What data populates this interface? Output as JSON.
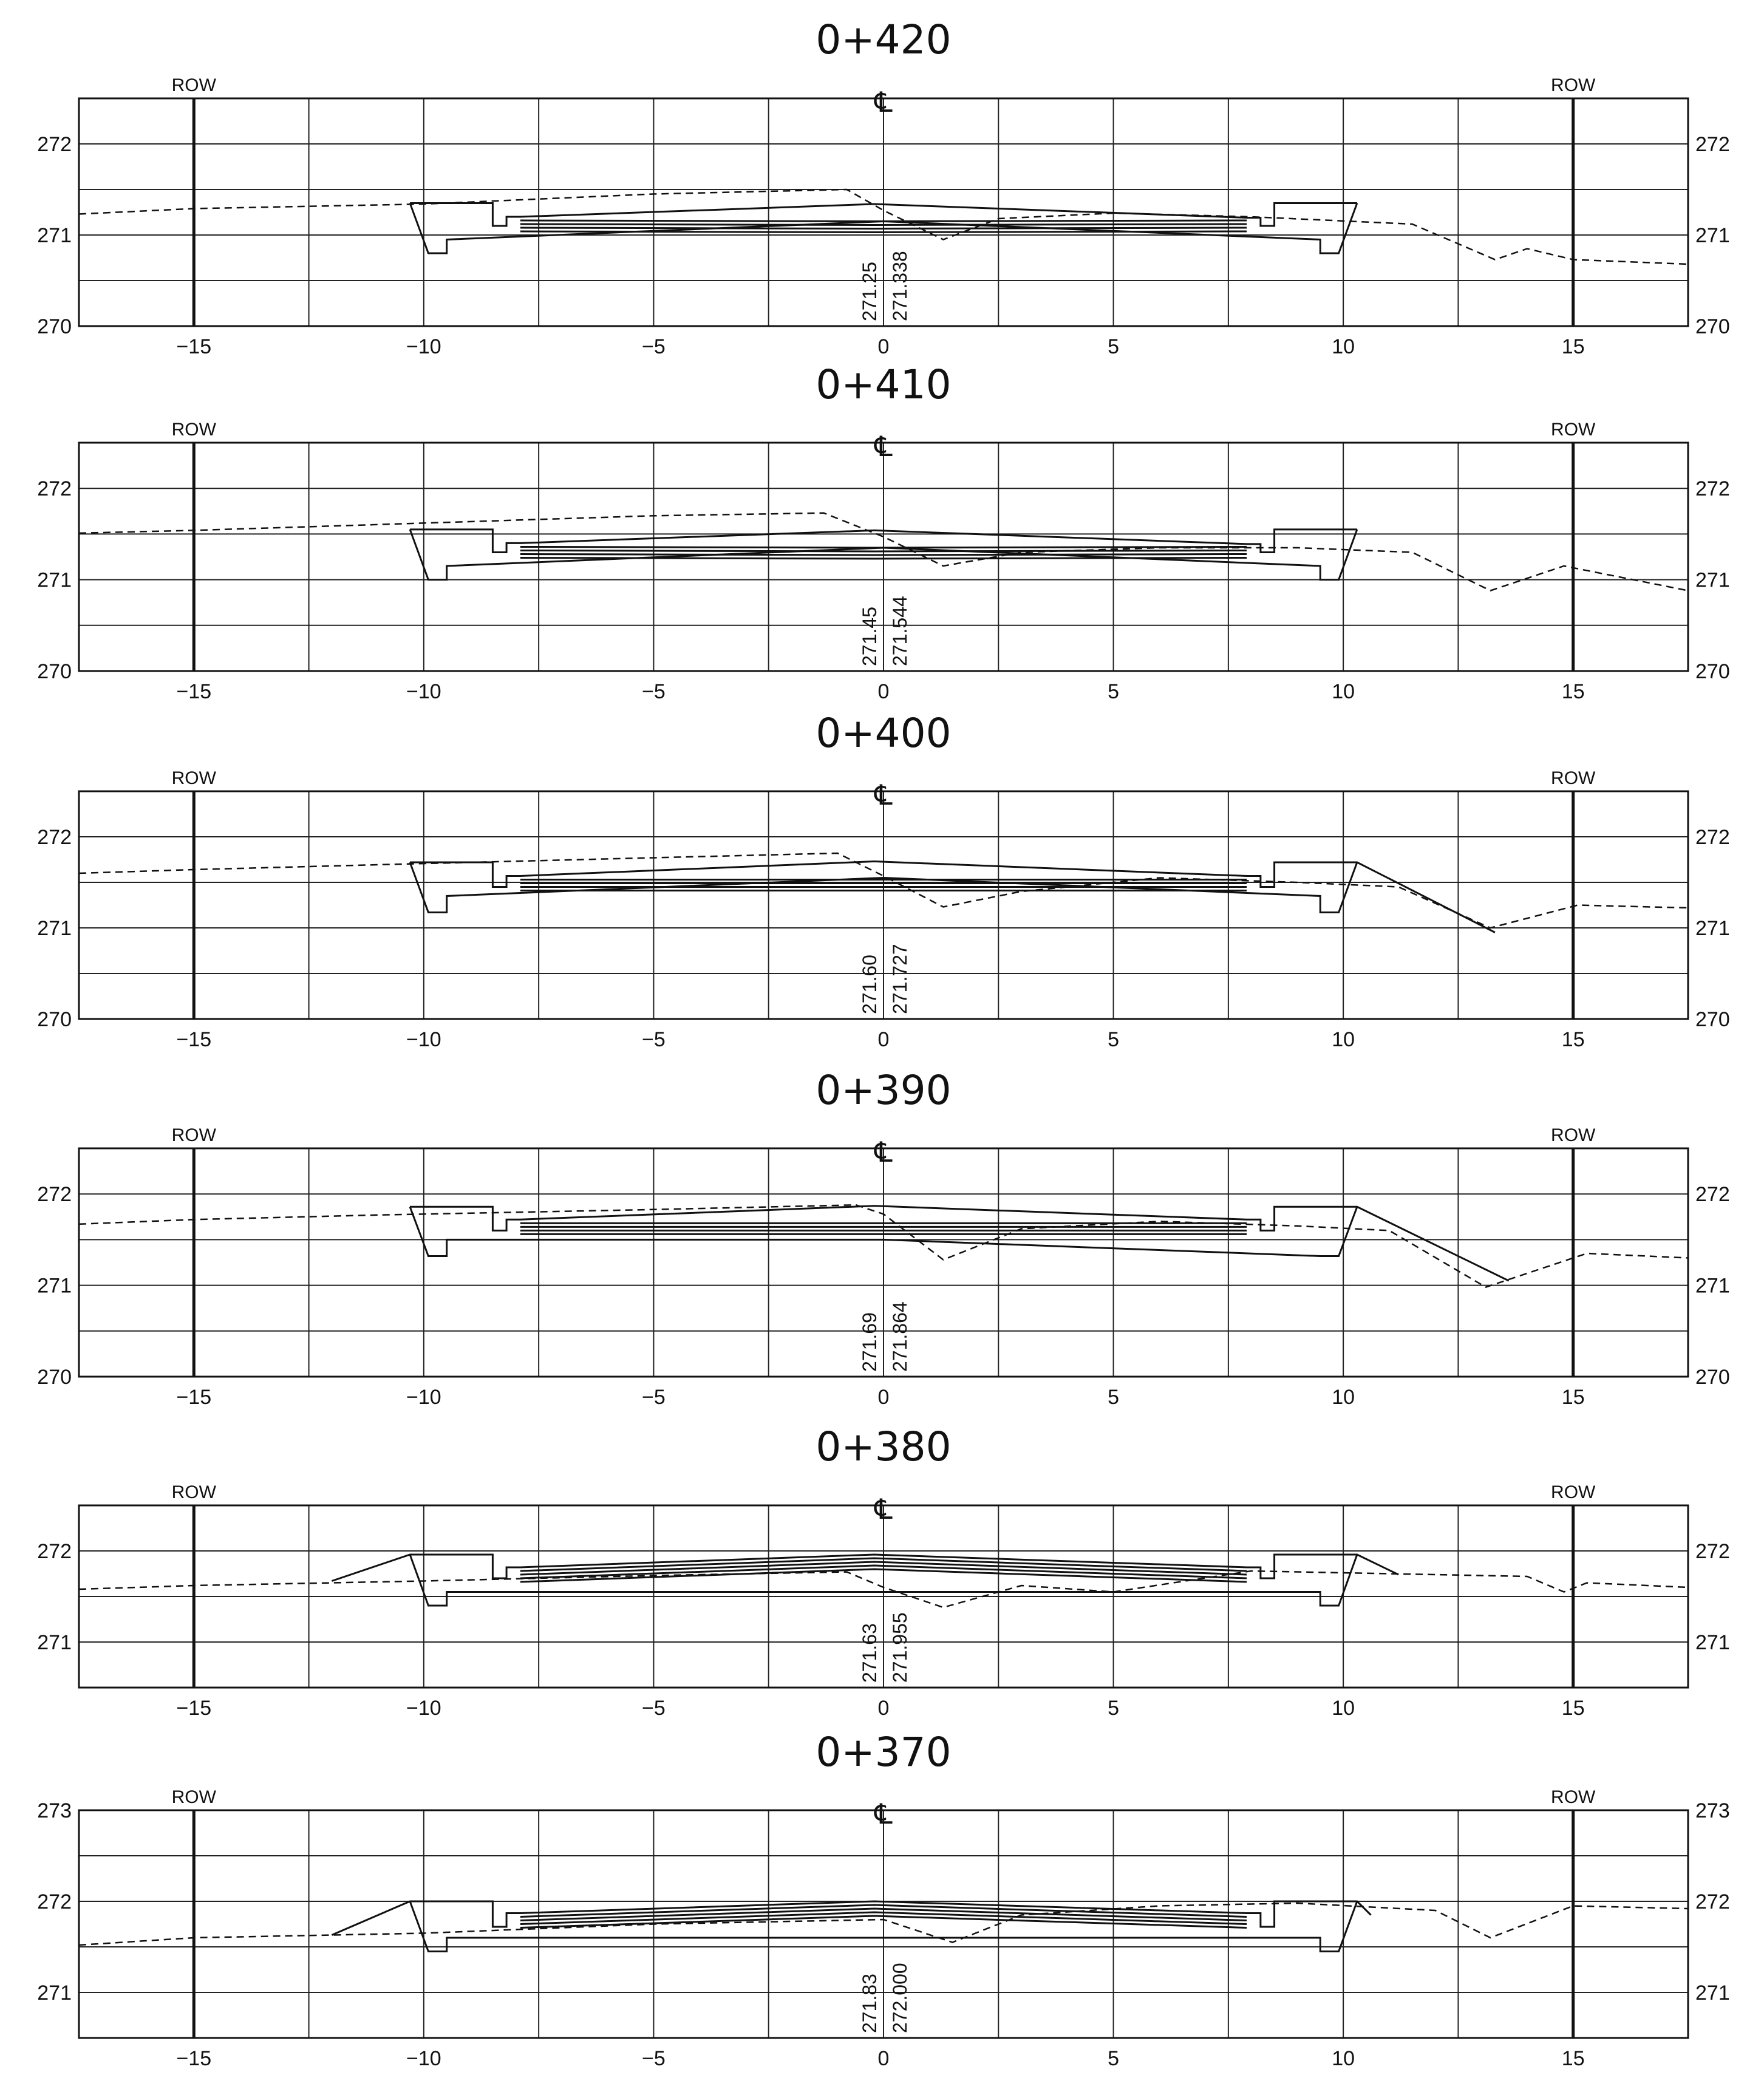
{
  "common": {
    "row_label": "ROW",
    "centerline_symbol": "℄",
    "x_ticks": [
      -15,
      -10,
      -5,
      0,
      5,
      10,
      15
    ],
    "x_tick_labels": [
      "−15",
      "−10",
      "−5",
      "0",
      "5",
      "10",
      "15"
    ],
    "x_range": [
      -17.5,
      17.5
    ],
    "row_offsets": [
      -15,
      15
    ]
  },
  "chart_data": [
    {
      "type": "line",
      "title": "0+420",
      "ylim": [
        270,
        272.5
      ],
      "y_ticks": [
        270,
        271,
        272
      ],
      "y_tick_labels": [
        "270",
        "271",
        "272"
      ],
      "existing_elevation": "271.25",
      "design_elevation": "271.338",
      "series": [
        {
          "x": [
            -10.3,
            -8.5,
            -8.5,
            -8.2,
            -8.2,
            -7.9,
            -0.2,
            7.9,
            8.2,
            8.2,
            8.5,
            8.5,
            10.3
          ],
          "y": [
            271.35,
            271.35,
            271.1,
            271.1,
            271.2,
            271.2,
            271.34,
            271.19,
            271.19,
            271.1,
            271.1,
            271.35,
            271.35
          ]
        },
        {
          "x": [
            -10.3,
            -9.9,
            -9.5,
            -9.5,
            0,
            9.5,
            9.5,
            9.9,
            10.3
          ],
          "y": [
            271.35,
            270.8,
            270.8,
            270.95,
            271.15,
            270.95,
            270.8,
            270.8,
            271.35
          ]
        },
        {
          "x": [
            -17.5,
            -15,
            -10,
            -5,
            -0.8,
            0,
            1.3,
            2.5,
            5,
            8,
            11.5,
            13.3,
            14,
            15,
            17.5
          ],
          "y": [
            271.23,
            271.29,
            271.34,
            271.45,
            271.5,
            271.27,
            270.95,
            271.18,
            271.24,
            271.2,
            271.12,
            270.73,
            270.85,
            270.73,
            270.68
          ]
        }
      ]
    },
    {
      "type": "line",
      "title": "0+410",
      "ylim": [
        270,
        272.5
      ],
      "y_ticks": [
        270,
        271,
        272
      ],
      "y_tick_labels": [
        "270",
        "271",
        "272"
      ],
      "existing_elevation": "271.45",
      "design_elevation": "271.544",
      "series": [
        {
          "x": [
            -10.3,
            -8.5,
            -8.5,
            -8.2,
            -8.2,
            -7.9,
            -0.2,
            7.9,
            8.2,
            8.2,
            8.5,
            8.5,
            10.3
          ],
          "y": [
            271.55,
            271.55,
            271.3,
            271.3,
            271.4,
            271.4,
            271.54,
            271.39,
            271.39,
            271.3,
            271.3,
            271.55,
            271.55
          ]
        },
        {
          "x": [
            -10.3,
            -9.9,
            -9.5,
            -9.5,
            0,
            9.5,
            9.5,
            9.9,
            10.3
          ],
          "y": [
            271.55,
            271.0,
            271.0,
            271.15,
            271.35,
            271.15,
            271.0,
            271.0,
            271.55
          ]
        },
        {
          "x": [
            -17.5,
            -15,
            -10,
            -5,
            -1.3,
            0,
            1.3,
            3,
            6,
            9,
            11.5,
            13.2,
            14.8,
            17.5
          ],
          "y": [
            271.51,
            271.54,
            271.62,
            271.7,
            271.73,
            271.47,
            271.15,
            271.3,
            271.35,
            271.35,
            271.3,
            270.88,
            271.15,
            270.88
          ]
        }
      ]
    },
    {
      "type": "line",
      "title": "0+400",
      "ylim": [
        270,
        272.5
      ],
      "y_ticks": [
        270,
        271,
        272
      ],
      "y_tick_labels": [
        "270",
        "271",
        "272"
      ],
      "existing_elevation": "271.60",
      "design_elevation": "271.727",
      "series": [
        {
          "x": [
            -10.3,
            -8.5,
            -8.5,
            -8.2,
            -8.2,
            -7.9,
            -0.2,
            7.9,
            8.2,
            8.2,
            8.5,
            8.5,
            10.3,
            13.3
          ],
          "y": [
            271.72,
            271.72,
            271.45,
            271.45,
            271.57,
            271.57,
            271.73,
            271.57,
            271.57,
            271.45,
            271.45,
            271.72,
            271.72,
            270.95
          ]
        },
        {
          "x": [
            -10.3,
            -9.9,
            -9.5,
            -9.5,
            0,
            9.5,
            9.5,
            9.9,
            10.3
          ],
          "y": [
            271.72,
            271.17,
            271.17,
            271.35,
            271.55,
            271.35,
            271.17,
            271.17,
            271.72
          ]
        },
        {
          "x": [
            -17.5,
            -15,
            -10.5,
            -5,
            -1,
            0,
            1.3,
            3,
            6,
            9,
            11.2,
            13.2,
            15.1,
            17.5
          ],
          "y": [
            271.6,
            271.64,
            271.7,
            271.77,
            271.82,
            271.57,
            271.23,
            271.4,
            271.55,
            271.5,
            271.45,
            271.0,
            271.25,
            271.22
          ]
        }
      ]
    },
    {
      "type": "line",
      "title": "0+390",
      "ylim": [
        270,
        272.5
      ],
      "y_ticks": [
        270,
        271,
        272
      ],
      "y_tick_labels": [
        "270",
        "271",
        "272"
      ],
      "existing_elevation": "271.69",
      "design_elevation": "271.864",
      "series": [
        {
          "x": [
            -10.3,
            -8.5,
            -8.5,
            -8.2,
            -8.2,
            -7.9,
            -0.2,
            7.9,
            8.2,
            8.2,
            8.5,
            8.5,
            10.3,
            13.6
          ],
          "y": [
            271.86,
            271.86,
            271.6,
            271.6,
            271.72,
            271.72,
            271.87,
            271.72,
            271.72,
            271.6,
            271.6,
            271.86,
            271.86,
            271.05
          ]
        },
        {
          "x": [
            -10.3,
            -9.9,
            -9.5,
            -9.5,
            0,
            9.5,
            9.5,
            9.9,
            10.3
          ],
          "y": [
            271.86,
            271.32,
            271.32,
            271.5,
            271.5,
            271.32,
            271.32,
            271.32,
            271.86
          ]
        },
        {
          "x": [
            -17.5,
            -15,
            -11,
            -5,
            -0.6,
            0,
            1.3,
            3,
            6,
            9,
            11,
            13.1,
            15.3,
            17.5
          ],
          "y": [
            271.67,
            271.72,
            271.77,
            271.83,
            271.88,
            271.78,
            271.28,
            271.62,
            271.7,
            271.65,
            271.6,
            270.98,
            271.35,
            271.3
          ]
        }
      ]
    },
    {
      "type": "line",
      "title": "0+380",
      "ylim": [
        270.5,
        272.5
      ],
      "y_ticks": [
        271,
        272
      ],
      "y_tick_labels": [
        "271",
        "272"
      ],
      "existing_elevation": "271.63",
      "design_elevation": "271.955",
      "series": [
        {
          "x": [
            -12,
            -10.3,
            -8.5,
            -8.5,
            -8.2,
            -8.2,
            -7.9,
            -0.2,
            7.9,
            8.2,
            8.2,
            8.5,
            8.5,
            10.3,
            11.2
          ],
          "y": [
            271.67,
            271.96,
            271.96,
            271.7,
            271.7,
            271.82,
            271.82,
            271.96,
            271.82,
            271.82,
            271.7,
            271.7,
            271.96,
            271.96,
            271.74
          ]
        },
        {
          "x": [
            -10.3,
            -9.9,
            -9.5,
            -9.5,
            0,
            9.5,
            9.5,
            9.9,
            10.3
          ],
          "y": [
            271.96,
            271.4,
            271.4,
            271.55,
            271.55,
            271.55,
            271.4,
            271.4,
            271.96
          ]
        },
        {
          "x": [
            -17.5,
            -15,
            -10,
            -5,
            -0.8,
            0,
            1.3,
            3,
            5,
            8,
            11,
            14,
            14.8,
            15.3,
            17.5
          ],
          "y": [
            271.58,
            271.62,
            271.67,
            271.73,
            271.77,
            271.6,
            271.38,
            271.62,
            271.55,
            271.78,
            271.75,
            271.72,
            271.55,
            271.65,
            271.6
          ]
        }
      ]
    },
    {
      "type": "line",
      "title": "0+370",
      "ylim": [
        270.5,
        273
      ],
      "y_ticks": [
        271,
        272,
        273
      ],
      "y_tick_labels": [
        "271",
        "272",
        "273"
      ],
      "existing_elevation": "271.83",
      "design_elevation": "272.000",
      "series": [
        {
          "x": [
            -12,
            -10.3,
            -8.5,
            -8.5,
            -8.2,
            -8.2,
            -7.9,
            -0.2,
            7.9,
            8.2,
            8.2,
            8.5,
            8.5,
            10.3,
            10.6
          ],
          "y": [
            271.63,
            272.0,
            272.0,
            271.72,
            271.72,
            271.87,
            271.87,
            272.0,
            271.87,
            271.87,
            271.72,
            271.72,
            272.0,
            272.0,
            271.85
          ]
        },
        {
          "x": [
            -10.3,
            -9.9,
            -9.5,
            -9.5,
            0,
            9.5,
            9.5,
            9.9,
            10.3
          ],
          "y": [
            272.0,
            271.45,
            271.45,
            271.6,
            271.6,
            271.6,
            271.45,
            271.45,
            272.0
          ]
        },
        {
          "x": [
            -17.5,
            -15,
            -10,
            -5,
            0,
            1.5,
            3,
            6,
            9,
            12,
            13.2,
            15,
            17.5
          ],
          "y": [
            271.52,
            271.6,
            271.65,
            271.75,
            271.8,
            271.55,
            271.85,
            271.95,
            271.98,
            271.9,
            271.6,
            271.95,
            271.92
          ]
        }
      ]
    }
  ]
}
